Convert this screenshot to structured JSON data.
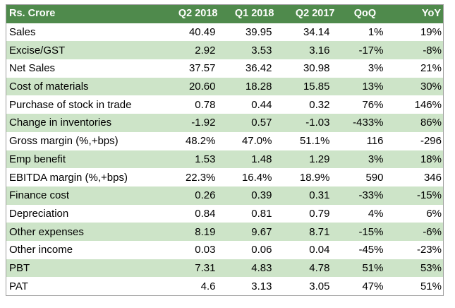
{
  "table": {
    "headers": [
      "Rs. Crore",
      "Q2 2018",
      "Q1 2018",
      "Q2 2017",
      "QoQ",
      "YoY"
    ],
    "rows": [
      [
        "Sales",
        "40.49",
        "39.95",
        "34.14",
        "1%",
        "19%"
      ],
      [
        "Excise/GST",
        "2.92",
        "3.53",
        "3.16",
        "-17%",
        "-8%"
      ],
      [
        "Net Sales",
        "37.57",
        "36.42",
        "30.98",
        "3%",
        "21%"
      ],
      [
        "Cost of materials",
        "20.60",
        "18.28",
        "15.85",
        "13%",
        "30%"
      ],
      [
        "Purchase of stock in trade",
        "0.78",
        "0.44",
        "0.32",
        "76%",
        "146%"
      ],
      [
        "Change in inventories",
        "-1.92",
        "0.57",
        "-1.03",
        "-433%",
        "86%"
      ],
      [
        "Gross margin (%,+bps)",
        "48.2%",
        "47.0%",
        "51.1%",
        "116",
        "-296"
      ],
      [
        "Emp benefit",
        "1.53",
        "1.48",
        "1.29",
        "3%",
        "18%"
      ],
      [
        "EBITDA margin (%,+bps)",
        "22.3%",
        "16.4%",
        "18.9%",
        "590",
        "346"
      ],
      [
        "Finance cost",
        "0.26",
        "0.39",
        "0.31",
        "-33%",
        "-15%"
      ],
      [
        "Depreciation",
        "0.84",
        "0.81",
        "0.79",
        "4%",
        "6%"
      ],
      [
        "Other expenses",
        "8.19",
        "9.67",
        "8.71",
        "-15%",
        "-6%"
      ],
      [
        "Other income",
        "0.03",
        "0.06",
        "0.04",
        "-45%",
        "-23%"
      ],
      [
        "PBT",
        "7.31",
        "4.83",
        "4.78",
        "51%",
        "53%"
      ],
      [
        "PAT",
        "4.6",
        "3.13",
        "3.05",
        "47%",
        "51%"
      ]
    ]
  },
  "colors": {
    "header_bg": "#4f8a4c",
    "header_text": "#ffffff",
    "stripe_bg": "#cde4c8",
    "row_bg": "#ffffff"
  }
}
